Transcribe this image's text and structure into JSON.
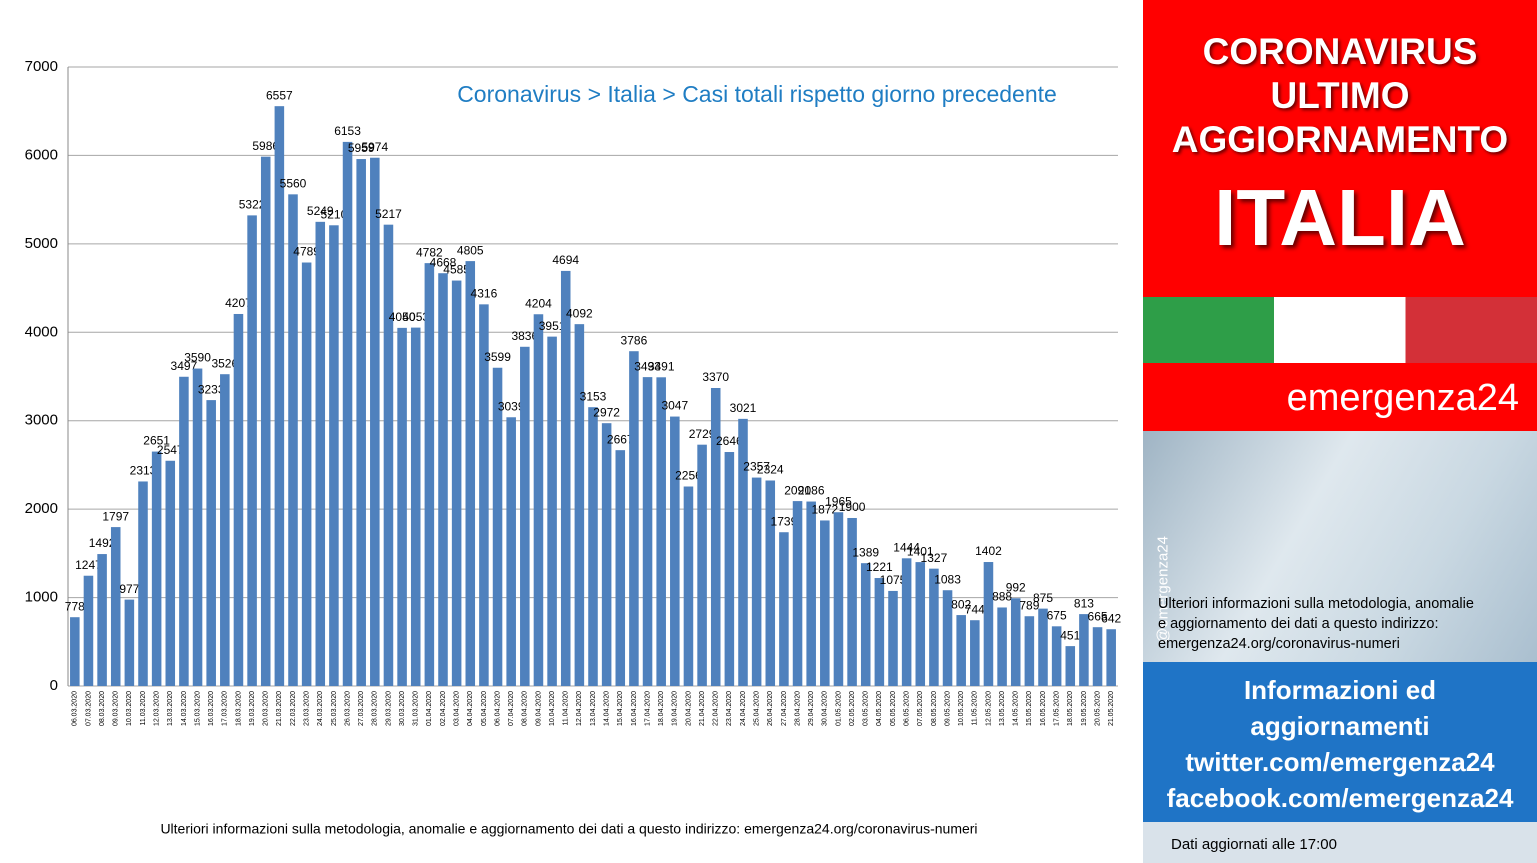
{
  "chart_data": {
    "type": "bar",
    "title": "Coronavirus > Italia > Casi totali rispetto giorno precedente",
    "categories": [
      "06.03.2020",
      "07.03.2020",
      "08.03.2020",
      "09.03.2020",
      "10.03.2020",
      "11.03.2020",
      "12.03.2020",
      "13.03.2020",
      "14.03.2020",
      "15.03.2020",
      "16.03.2020",
      "17.03.2020",
      "18.03.2020",
      "19.03.2020",
      "20.03.2020",
      "21.03.2020",
      "22.03.2020",
      "23.03.2020",
      "24.03.2020",
      "25.03.2020",
      "26.03.2020",
      "27.03.2020",
      "28.03.2020",
      "29.03.2020",
      "30.03.2020",
      "31.03.2020",
      "01.04.2020",
      "02.04.2020",
      "03.04.2020",
      "04.04.2020",
      "05.04.2020",
      "06.04.2020",
      "07.04.2020",
      "08.04.2020",
      "09.04.2020",
      "10.04.2020",
      "11.04.2020",
      "12.04.2020",
      "13.04.2020",
      "14.04.2020",
      "15.04.2020",
      "16.04.2020",
      "17.04.2020",
      "18.04.2020",
      "19.04.2020",
      "20.04.2020",
      "21.04.2020",
      "22.04.2020",
      "23.04.2020",
      "24.04.2020",
      "25.04.2020",
      "26.04.2020",
      "27.04.2020",
      "28.04.2020",
      "29.04.2020",
      "30.04.2020",
      "01.05.2020",
      "02.05.2020",
      "03.05.2020",
      "04.05.2020",
      "05.05.2020",
      "06.05.2020",
      "07.05.2020",
      "08.05.2020",
      "09.05.2020",
      "10.05.2020",
      "11.05.2020",
      "12.05.2020",
      "13.05.2020",
      "14.05.2020",
      "15.05.2020",
      "16.05.2020",
      "17.05.2020",
      "18.05.2020",
      "19.05.2020",
      "20.05.2020",
      "21.05.2020"
    ],
    "values": [
      778,
      1247,
      1492,
      1797,
      977,
      2313,
      2651,
      2547,
      3497,
      3590,
      3233,
      3526,
      4207,
      5322,
      5986,
      6557,
      5560,
      4789,
      5249,
      5210,
      6153,
      5959,
      5974,
      5217,
      4050,
      4053,
      4782,
      4668,
      4585,
      4805,
      4316,
      3599,
      3039,
      3836,
      4204,
      3951,
      4694,
      4092,
      3153,
      2972,
      2667,
      3786,
      3493,
      3491,
      3047,
      2256,
      2729,
      3370,
      2646,
      3021,
      2357,
      2324,
      1739,
      2091,
      2086,
      1872,
      1965,
      1900,
      1389,
      1221,
      1075,
      1444,
      1401,
      1327,
      1083,
      802,
      744,
      1402,
      888,
      992,
      789,
      875,
      675,
      451,
      813,
      665,
      642
    ],
    "color": "#4f81bd",
    "ylim": [
      0,
      7000
    ],
    "yticks": [
      0,
      1000,
      2000,
      3000,
      4000,
      5000,
      6000,
      7000
    ],
    "grid": true,
    "footnote": "Ulteriori informazioni sulla metodologia, anomalie e aggiornamento dei dati a questo indirizzo: emergenza24.org/coronavirus-numeri"
  },
  "panel": {
    "headline": [
      "CORONAVIRUS",
      "ULTIMO",
      "AGGIORNAMENTO"
    ],
    "country": "ITALIA",
    "brand": "emergenza24",
    "handle": "@emergenza24",
    "info": [
      "Ulteriori informazioni sulla metodologia, anomalie",
      "e aggiornamento dei dati a questo indirizzo:",
      "emergenza24.org/coronavirus-numeri"
    ],
    "social": [
      "Informazioni ed",
      "aggiornamenti",
      "twitter.com/emergenza24",
      "facebook.com/emergenza24"
    ],
    "updated": "Dati aggiornati alle 17:00"
  }
}
